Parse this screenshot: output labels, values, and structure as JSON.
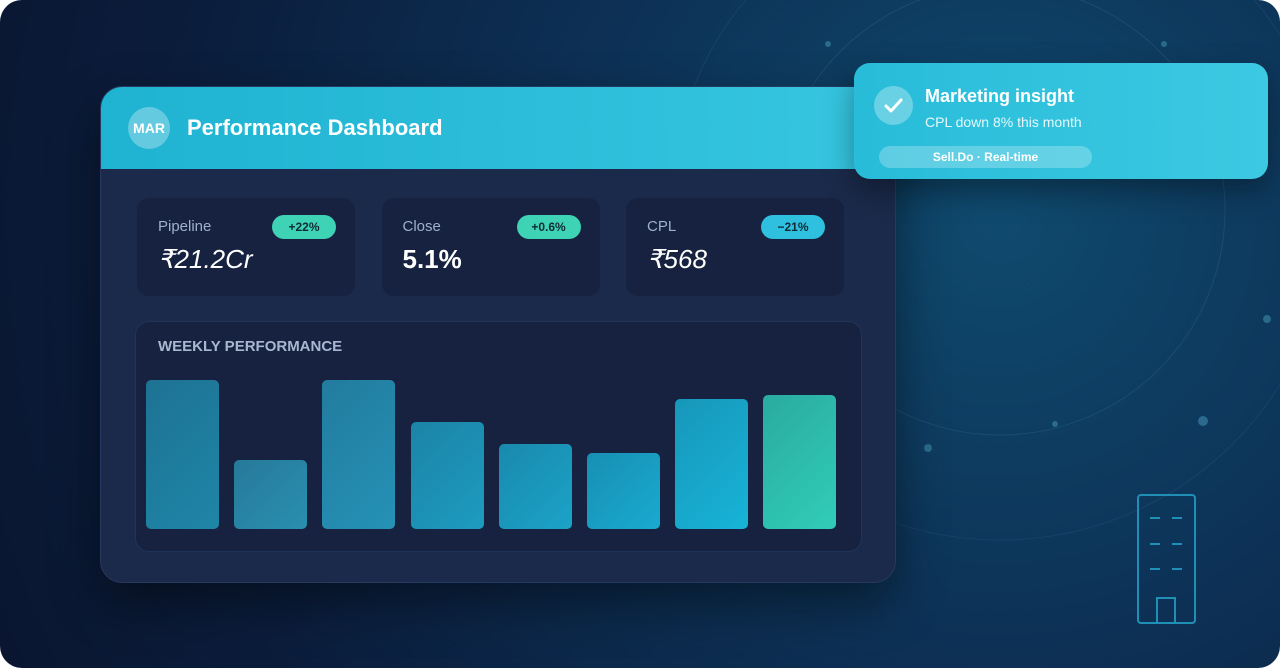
{
  "header": {
    "avatar": "MAR",
    "title": "Performance Dashboard"
  },
  "kpis": [
    {
      "label": "Pipeline",
      "value": "₹21.2Cr",
      "change": "+22%"
    },
    {
      "label": "Close",
      "value": "5.1%",
      "change": "+0.6%"
    },
    {
      "label": "CPL",
      "value": "₹568",
      "change": "−21%"
    }
  ],
  "chart_data": {
    "type": "bar",
    "title": "WEEKLY PERFORMANCE",
    "categories": [
      null,
      null,
      null,
      null,
      null,
      null,
      null,
      null
    ],
    "values": [
      100,
      46,
      100,
      72,
      57,
      51,
      87,
      90
    ],
    "colors": [
      "#1f86a8",
      "#2a8fb0",
      "#2592b6",
      "#1d9cc0",
      "#1ba3c8",
      "#19aad0",
      "#17b4d8",
      "#30cdb8"
    ],
    "ylim": [
      0,
      100
    ]
  },
  "notification": {
    "title": "Marketing insight",
    "message": "CPL down 8% this month",
    "tag": "Sell.Do · Real-time"
  }
}
